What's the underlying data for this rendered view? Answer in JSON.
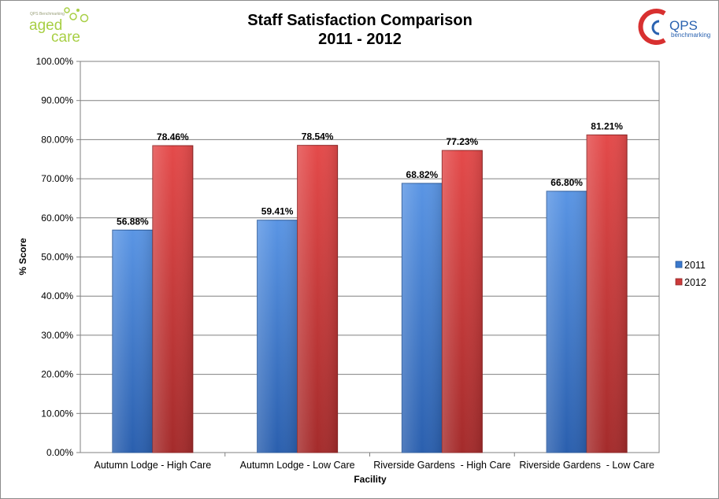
{
  "logos": {
    "left_small_text": "QPS Benchmarking",
    "left_line1": "aged",
    "left_line2": "care",
    "right_name": "QPS",
    "right_sub": "benchmarking"
  },
  "chart_data": {
    "type": "bar",
    "title": "Staff Satisfaction  Comparison",
    "subtitle": "2011 - 2012",
    "xlabel": "Facility",
    "ylabel": "% Score",
    "ylim": [
      0,
      100
    ],
    "yticks": [
      "0.00%",
      "10.00%",
      "20.00%",
      "30.00%",
      "40.00%",
      "50.00%",
      "60.00%",
      "70.00%",
      "80.00%",
      "90.00%",
      "100.00%"
    ],
    "grid": true,
    "legend_position": "right",
    "categories": [
      "Autumn Lodge - High Care",
      "Autumn Lodge - Low Care",
      "Riverside Gardens  - High Care",
      "Riverside Gardens  - Low Care"
    ],
    "series": [
      {
        "name": "2011",
        "color": "#4a86d8",
        "values": [
          56.88,
          59.41,
          68.82,
          66.8
        ],
        "labels": [
          "56.88%",
          "59.41%",
          "68.82%",
          "66.80%"
        ]
      },
      {
        "name": "2012",
        "color": "#d94040",
        "values": [
          78.46,
          78.54,
          77.23,
          81.21
        ],
        "labels": [
          "78.46%",
          "78.54%",
          "77.23%",
          "81.21%"
        ]
      }
    ]
  }
}
